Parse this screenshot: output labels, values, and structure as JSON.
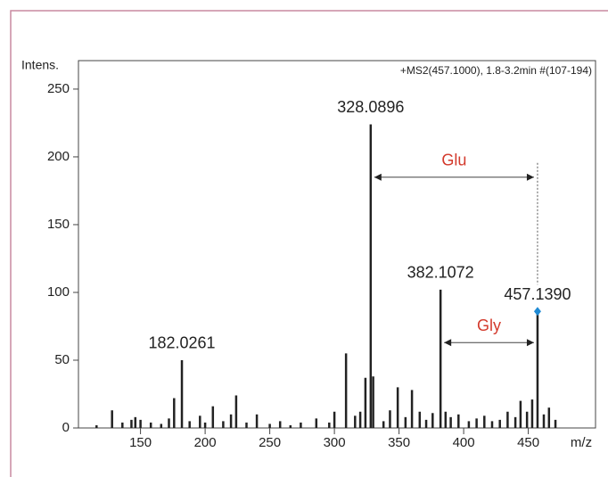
{
  "chart_data": {
    "type": "spectrum",
    "y_label": "Intens.",
    "x_label": "m/z",
    "corner_note": "+MS2(457.1000), 1.8-3.2min #(107-194)",
    "xlim": [
      102,
      502
    ],
    "ylim": [
      0,
      271
    ],
    "xticks": [
      150,
      200,
      250,
      300,
      350,
      400,
      450
    ],
    "yticks": [
      0,
      50,
      100,
      150,
      200,
      250
    ],
    "series": [
      {
        "color": "#222222",
        "x": [
          116,
          128,
          136,
          143,
          146,
          150,
          158,
          166,
          172,
          176,
          182.0261,
          188,
          196,
          200,
          206,
          214,
          220,
          224,
          232,
          240,
          250,
          258,
          266,
          274,
          286,
          296,
          300,
          309,
          316,
          320,
          324,
          328.0896,
          330,
          338,
          343,
          349,
          355,
          360,
          366,
          371,
          376,
          382.1072,
          386,
          390,
          396,
          404,
          410,
          416,
          422,
          428,
          434,
          440,
          444,
          449,
          453,
          457.139,
          462,
          466,
          471
        ],
        "values": [
          2,
          13,
          4,
          6,
          8,
          6,
          4,
          3,
          7,
          22,
          50,
          5,
          9,
          4,
          16,
          5,
          10,
          24,
          4,
          10,
          3,
          5,
          2,
          4,
          7,
          4,
          12,
          55,
          9,
          12,
          37,
          224,
          38,
          5,
          13,
          30,
          8,
          28,
          12,
          6,
          11,
          102,
          12,
          8,
          10,
          5,
          7,
          9,
          5,
          6,
          12,
          8,
          20,
          12,
          21,
          86,
          10,
          15,
          6
        ],
        "point_labels": [
          null,
          null,
          null,
          null,
          null,
          null,
          null,
          null,
          null,
          null,
          "182.0261",
          null,
          null,
          null,
          null,
          null,
          null,
          null,
          null,
          null,
          null,
          null,
          null,
          null,
          null,
          null,
          null,
          null,
          null,
          null,
          null,
          "328.0896",
          null,
          null,
          null,
          null,
          null,
          null,
          null,
          null,
          null,
          "382.1072",
          null,
          null,
          null,
          null,
          null,
          null,
          null,
          null,
          null,
          null,
          null,
          null,
          null,
          "457.1390",
          null,
          null,
          null
        ],
        "marker_color": "#1f8ad4"
      }
    ],
    "brackets": [
      {
        "text": "Glu",
        "from": 328.0896,
        "to": 457.139,
        "y": 185,
        "color": "#d33a2c"
      },
      {
        "text": "Gly",
        "from": 382.1072,
        "to": 457.139,
        "y": 63,
        "color": "#d33a2c"
      }
    ]
  }
}
